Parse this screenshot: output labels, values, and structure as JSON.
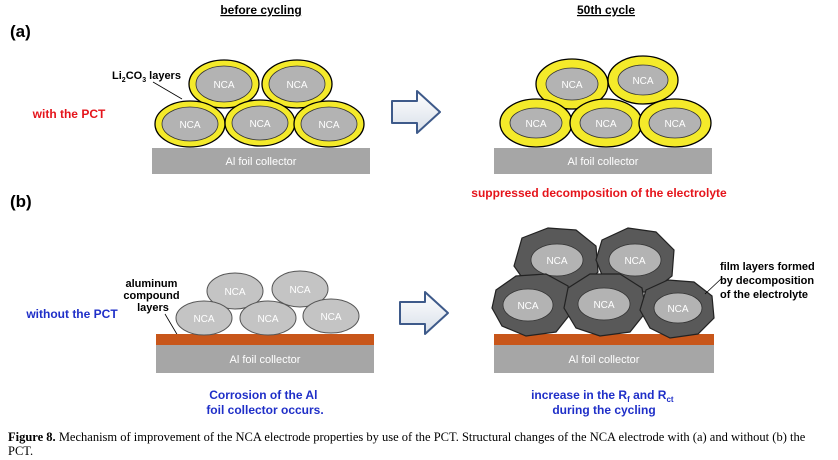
{
  "headers": {
    "before": "before cycling",
    "after": "50th cycle"
  },
  "panels": {
    "a": {
      "label": "(a)",
      "condition": "with the PCT",
      "layer_label": {
        "prefix": "Li",
        "sub1": "2",
        "mid": "CO",
        "sub2": "3",
        "suffix": " layers"
      },
      "result": "suppressed decomposition of the electrolyte"
    },
    "b": {
      "label": "(b)",
      "condition": "without the PCT",
      "layer_label": [
        "aluminum",
        "compound",
        "layers"
      ],
      "film_label": [
        "film layers formed",
        "by decomposition",
        "of the electrolyte"
      ],
      "corrosion": [
        "Corrosion of the Al",
        "foil collector occurs."
      ],
      "increase": {
        "line1_prefix": "increase in the R",
        "sub_f": "f",
        "and": " and R",
        "sub_ct": "ct",
        "line2": "during the cycling"
      }
    }
  },
  "particle_label": "NCA",
  "collector_label": "Al foil collector",
  "caption": {
    "title": "Figure 8.",
    "text": "  Mechanism of improvement of the NCA electrode properties by use of the PCT. Structural changes of the NCA electrode with (a) and without (b) the PCT."
  },
  "colors": {
    "red_text": "#e5141b",
    "blue_text": "#1f2fc8",
    "li2co3_yellow": "#f4ea2a",
    "nca_gray": "#b3b3b3",
    "collector_gray": "#a6a6a6",
    "al_compound_orange": "#c8561a",
    "film_dark": "#595959",
    "arrow_blue": "#3e5a8a"
  }
}
